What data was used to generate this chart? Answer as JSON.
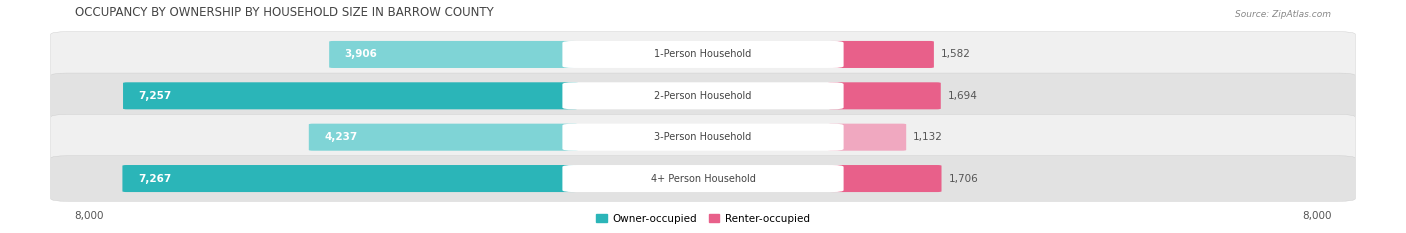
{
  "title": "OCCUPANCY BY OWNERSHIP BY HOUSEHOLD SIZE IN BARROW COUNTY",
  "source": "Source: ZipAtlas.com",
  "categories": [
    "1-Person Household",
    "2-Person Household",
    "3-Person Household",
    "4+ Person Household"
  ],
  "owner_values": [
    3906,
    7257,
    4237,
    7267
  ],
  "renter_values": [
    1582,
    1694,
    1132,
    1706
  ],
  "max_axis": 8000,
  "owner_color_dark": "#2bb5b8",
  "owner_color_light": "#7fd4d6",
  "renter_color_dark": "#e8608a",
  "renter_color_light": "#f0a8c0",
  "owner_label": "Owner-occupied",
  "renter_label": "Renter-occupied",
  "bg_color": "#ffffff",
  "row_colors": [
    "#f0f0f0",
    "#e2e2e2"
  ],
  "label_color": "#555555",
  "title_color": "#333333",
  "figsize": [
    14.06,
    2.33
  ],
  "dpi": 100
}
